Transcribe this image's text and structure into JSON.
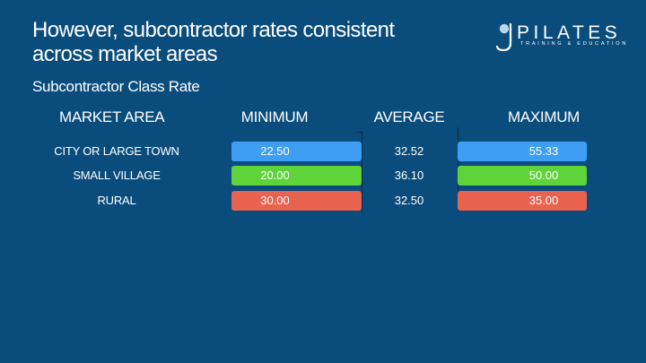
{
  "slide": {
    "title": "However, subcontractor rates consistent across market areas",
    "subtitle": "Subcontractor Class Rate"
  },
  "logo": {
    "word": "PILATES",
    "tagline": "TRAINING & EDUCATION",
    "mark_letter": "J"
  },
  "table": {
    "headers": {
      "area": "MARKET AREA",
      "min": "MINIMUM",
      "avg": "AVERAGE",
      "max": "MAXIMUM"
    },
    "rows": [
      {
        "area": "CITY OR LARGE TOWN",
        "min": "22.50",
        "avg": "32.52",
        "max": "55.33",
        "color": "#3d9ef4"
      },
      {
        "area": "SMALL VILLAGE",
        "min": "20.00",
        "avg": "36.10",
        "max": "50.00",
        "color": "#5ed33a"
      },
      {
        "area": "RURAL",
        "min": "30.00",
        "avg": "32.50",
        "max": "35.00",
        "color": "#e9614f"
      }
    ]
  }
}
